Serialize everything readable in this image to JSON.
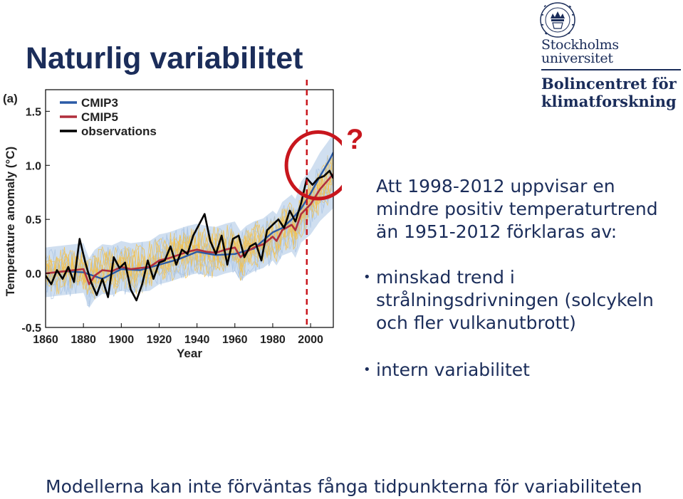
{
  "slide": {
    "title": "Naturlig variabilitet",
    "question_mark": "?",
    "paragraph": "Att 1998-2012 uppvisar en mindre positiv temperaturtrend än 1951-2012 förklaras av:",
    "bullets": [
      "minskad trend i strålningsdrivningen (solcykeln och fler vulkanutbrott)",
      "intern variabilitet"
    ],
    "footer": "Modellerna kan inte förväntas fånga tidpunkterna för variabiliteten"
  },
  "logo": {
    "university_line1": "Stockholms",
    "university_line2": "universitet",
    "center_line1": "Bolincentret för",
    "center_line2": "klimatforskning"
  },
  "colors": {
    "title": "#1b2d5a",
    "accent_red": "#c8161d",
    "cmip3": "#2a5aa6",
    "cmip5": "#b02e3c",
    "observations": "#000000",
    "cmip5_ensemble": "#f2c14e",
    "cmip3_ensemble": "#a9c4e4"
  },
  "chart_data": {
    "type": "line",
    "panel_label": "(a)",
    "xlabel": "Year",
    "ylabel": "Temperature anomaly (°C)",
    "xlim": [
      1860,
      2012
    ],
    "ylim": [
      -0.5,
      1.7
    ],
    "xticks": [
      1860,
      1880,
      1900,
      1920,
      1940,
      1960,
      1980,
      2000
    ],
    "yticks": [
      -0.5,
      0.0,
      0.5,
      1.0,
      1.5
    ],
    "ytick_labels": [
      "-0.5",
      "0.0",
      "0.5",
      "1.0",
      "1.5"
    ],
    "legend_position": "top-left",
    "highlight_year": 1998,
    "highlight_circle_center": [
      2004,
      1.0
    ],
    "highlight_circle_radius_years": 16,
    "series": [
      {
        "name": "CMIP3",
        "x": [
          1860,
          1870,
          1880,
          1890,
          1900,
          1910,
          1920,
          1930,
          1940,
          1950,
          1960,
          1970,
          1980,
          1985,
          1990,
          1995,
          2000,
          2005,
          2010,
          2012
        ],
        "y": [
          0.0,
          0.02,
          0.01,
          -0.05,
          0.04,
          0.03,
          0.08,
          0.13,
          0.2,
          0.17,
          0.18,
          0.23,
          0.38,
          0.42,
          0.5,
          0.6,
          0.74,
          0.9,
          1.05,
          1.12
        ]
      },
      {
        "name": "CMIP5",
        "x": [
          1860,
          1865,
          1870,
          1875,
          1880,
          1883,
          1886,
          1890,
          1895,
          1900,
          1905,
          1910,
          1915,
          1920,
          1925,
          1930,
          1935,
          1940,
          1945,
          1950,
          1955,
          1960,
          1963,
          1966,
          1970,
          1975,
          1980,
          1982,
          1985,
          1990,
          1992,
          1995,
          2000,
          2005,
          2010,
          2012
        ],
        "y": [
          0.0,
          0.01,
          0.02,
          0.03,
          0.04,
          -0.1,
          -0.02,
          0.03,
          0.02,
          0.06,
          0.04,
          0.05,
          0.06,
          0.12,
          0.14,
          0.17,
          0.2,
          0.22,
          0.2,
          0.19,
          0.22,
          0.24,
          0.15,
          0.2,
          0.24,
          0.27,
          0.34,
          0.3,
          0.4,
          0.45,
          0.4,
          0.55,
          0.64,
          0.78,
          0.88,
          0.92
        ]
      },
      {
        "name": "observations",
        "x": [
          1860,
          1863,
          1866,
          1869,
          1872,
          1875,
          1878,
          1881,
          1884,
          1887,
          1890,
          1893,
          1896,
          1899,
          1902,
          1905,
          1908,
          1911,
          1914,
          1917,
          1920,
          1923,
          1926,
          1929,
          1932,
          1935,
          1938,
          1941,
          1944,
          1947,
          1950,
          1953,
          1956,
          1959,
          1962,
          1965,
          1968,
          1971,
          1974,
          1977,
          1980,
          1983,
          1986,
          1989,
          1992,
          1995,
          1998,
          2001,
          2004,
          2007,
          2010,
          2012
        ],
        "y": [
          -0.02,
          -0.1,
          0.03,
          -0.05,
          0.06,
          -0.08,
          0.32,
          0.1,
          -0.08,
          -0.2,
          -0.05,
          -0.22,
          0.15,
          0.05,
          0.1,
          -0.15,
          -0.25,
          -0.1,
          0.12,
          -0.05,
          0.1,
          0.12,
          0.25,
          0.08,
          0.22,
          0.18,
          0.35,
          0.45,
          0.55,
          0.3,
          0.18,
          0.35,
          0.08,
          0.32,
          0.35,
          0.15,
          0.25,
          0.28,
          0.12,
          0.4,
          0.45,
          0.5,
          0.42,
          0.58,
          0.48,
          0.65,
          0.88,
          0.82,
          0.88,
          0.9,
          0.95,
          0.88
        ]
      }
    ]
  }
}
